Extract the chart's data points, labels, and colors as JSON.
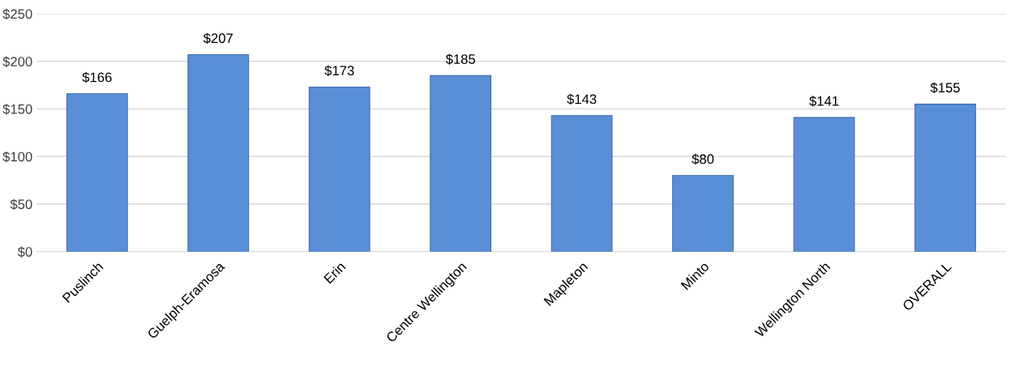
{
  "chart_data": {
    "type": "bar",
    "categories": [
      "Puslinch",
      "Guelph-Eramosa",
      "Erin",
      "Centre Wellington",
      "Mapleton",
      "Minto",
      "Wellington North",
      "OVERALL"
    ],
    "values": [
      166,
      207,
      173,
      185,
      143,
      80,
      141,
      155
    ],
    "value_labels": [
      "$166",
      "$207",
      "$173",
      "$185",
      "$143",
      "$80",
      "$141",
      "$155"
    ],
    "color": "#5a8ed6",
    "ylim": [
      0,
      250
    ],
    "yticks": [
      {
        "value": 0,
        "label": "$0"
      },
      {
        "value": 50,
        "label": "$50"
      },
      {
        "value": 100,
        "label": "$100"
      },
      {
        "value": 150,
        "label": "$150"
      },
      {
        "value": 200,
        "label": "$200"
      },
      {
        "value": 250,
        "label": "$250"
      }
    ],
    "grid": "y",
    "legend": false
  }
}
